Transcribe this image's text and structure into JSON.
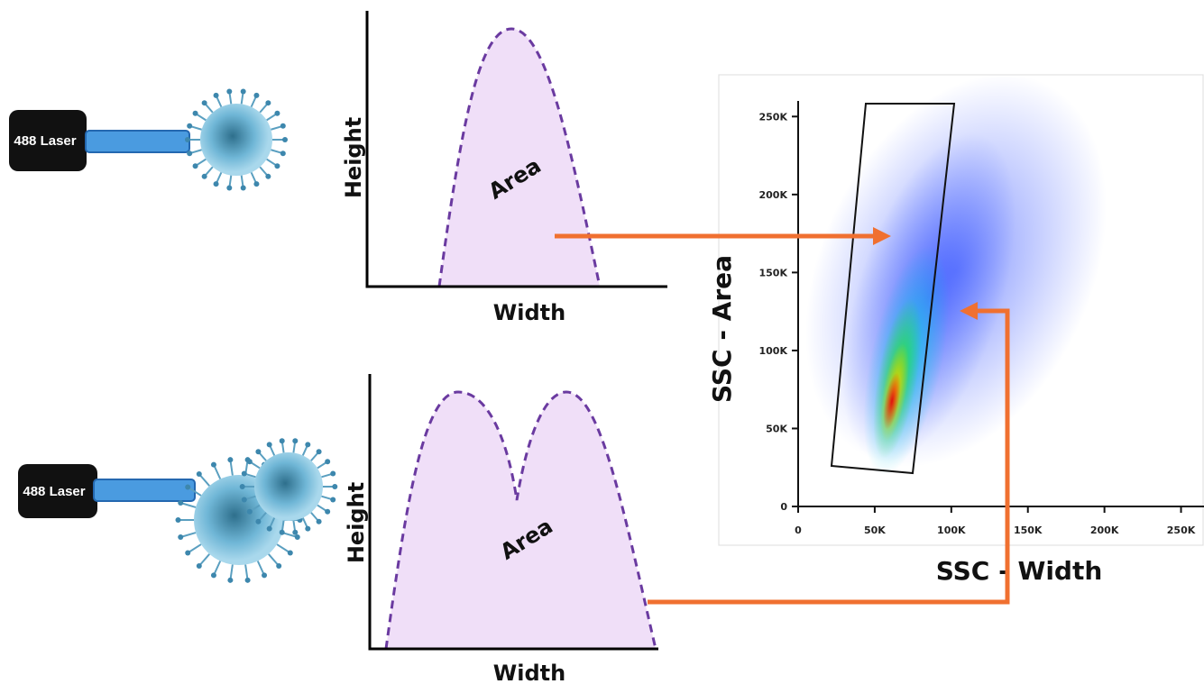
{
  "top_panel": {
    "laser_label": "488 Laser",
    "y_label": "Height",
    "x_label": "Width",
    "area_label": "Area"
  },
  "bottom_panel": {
    "laser_label": "488 Laser",
    "y_label": "Height",
    "x_label": "Width",
    "area_label": "Area"
  },
  "scatter_plot": {
    "y_label": "SSC - Area",
    "x_label": "SSC - Width",
    "xlim": [
      0,
      265000
    ],
    "ylim": [
      0,
      260000
    ],
    "xticks": [
      {
        "value": 0,
        "label": "0"
      },
      {
        "value": 50000,
        "label": "50K"
      },
      {
        "value": 100000,
        "label": "100K"
      },
      {
        "value": 150000,
        "label": "150K"
      },
      {
        "value": 200000,
        "label": "200K"
      },
      {
        "value": 250000,
        "label": "250K"
      }
    ],
    "yticks": [
      {
        "value": 0,
        "label": "0"
      },
      {
        "value": 50000,
        "label": "50K"
      },
      {
        "value": 100000,
        "label": "100K"
      },
      {
        "value": 150000,
        "label": "150K"
      },
      {
        "value": 200000,
        "label": "200K"
      },
      {
        "value": 250000,
        "label": "250K"
      }
    ]
  }
}
